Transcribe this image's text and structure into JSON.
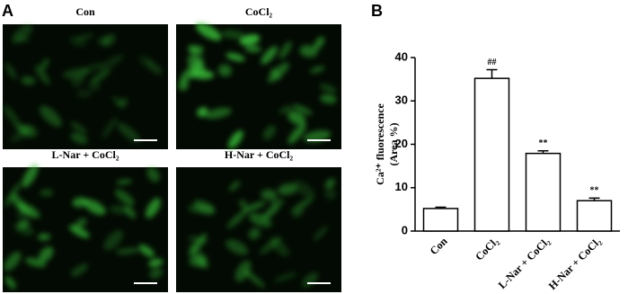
{
  "panel_labels": [
    "A",
    "B"
  ],
  "micrographs": [
    "Con",
    "CoCl₂",
    "L-Nar + CoCl₂",
    "H-Nar + CoCl₂"
  ],
  "chart_data": {
    "type": "bar",
    "y_label_lines": [
      "Ca²⁺ fluorescence",
      "(Area %)"
    ],
    "categories": [
      "Con",
      "CoCl₂",
      "L-Nar + CoCl₂",
      "H-Nar + CoCl₂"
    ],
    "values": [
      5.2,
      35.2,
      17.9,
      7.0
    ],
    "errors": [
      0.3,
      2.0,
      0.6,
      0.6
    ],
    "significance": [
      null,
      "##",
      "**",
      "**"
    ],
    "color": "#ffffff",
    "ylim": [
      0,
      40
    ],
    "yticks": [
      0,
      10,
      20,
      30,
      40
    ]
  }
}
